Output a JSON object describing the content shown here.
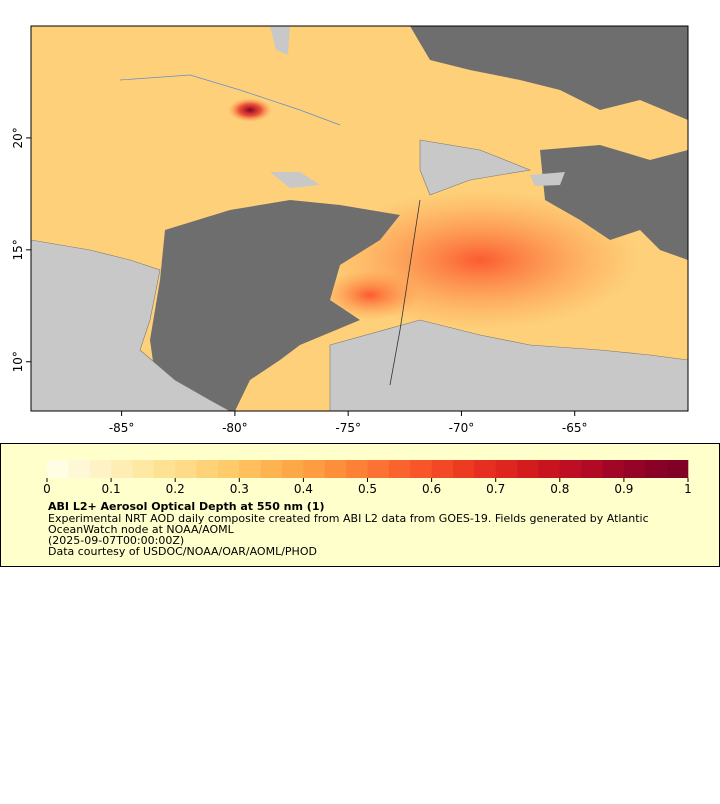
{
  "chart_data": {
    "type": "map",
    "xlim": [
      -89,
      -60
    ],
    "ylim": [
      7.8,
      25
    ],
    "xticks": [
      {
        "value": -85,
        "label": "-85°"
      },
      {
        "value": -80,
        "label": "-80°"
      },
      {
        "value": -75,
        "label": "-75°"
      },
      {
        "value": -70,
        "label": "-70°"
      },
      {
        "value": -65,
        "label": "-65°"
      }
    ],
    "yticks": [
      {
        "value": 10,
        "label": "10°"
      },
      {
        "value": 15,
        "label": "15°"
      },
      {
        "value": 20,
        "label": "20°"
      }
    ],
    "colorbar": {
      "xlim": [
        0,
        1
      ],
      "ticks": [
        0,
        0.1,
        0.2,
        0.3,
        0.4,
        0.5,
        0.6,
        0.7,
        0.8,
        0.9,
        1
      ],
      "colors": [
        "#fffde4",
        "#fff8d6",
        "#fff3c6",
        "#ffeeb4",
        "#ffe8a4",
        "#fee294",
        "#fedb86",
        "#fed378",
        "#fecb6a",
        "#febf5c",
        "#fdb450",
        "#fda846",
        "#fd9c40",
        "#fd8f3a",
        "#fc8136",
        "#fc7232",
        "#fb632e",
        "#f8552a",
        "#f34826",
        "#ed3b22",
        "#e62f20",
        "#de251e",
        "#d41c1f",
        "#c9141f",
        "#bd0e23",
        "#b00a25",
        "#a20626",
        "#950326",
        "#890126",
        "#800026"
      ]
    },
    "title": "ABI L2+ Aerosol Optical Depth at 550 nm (1)",
    "description": [
      "Experimental NRT AOD daily composite created from ABI L2 data from GOES-19. Fields generated by Atlantic",
      "OceanWatch node at NOAA/AOML",
      "(2025-09-07T00:00:00Z)",
      "Data courtesy of USDOC/NOAA/OAR/AOML/PHOD"
    ]
  }
}
